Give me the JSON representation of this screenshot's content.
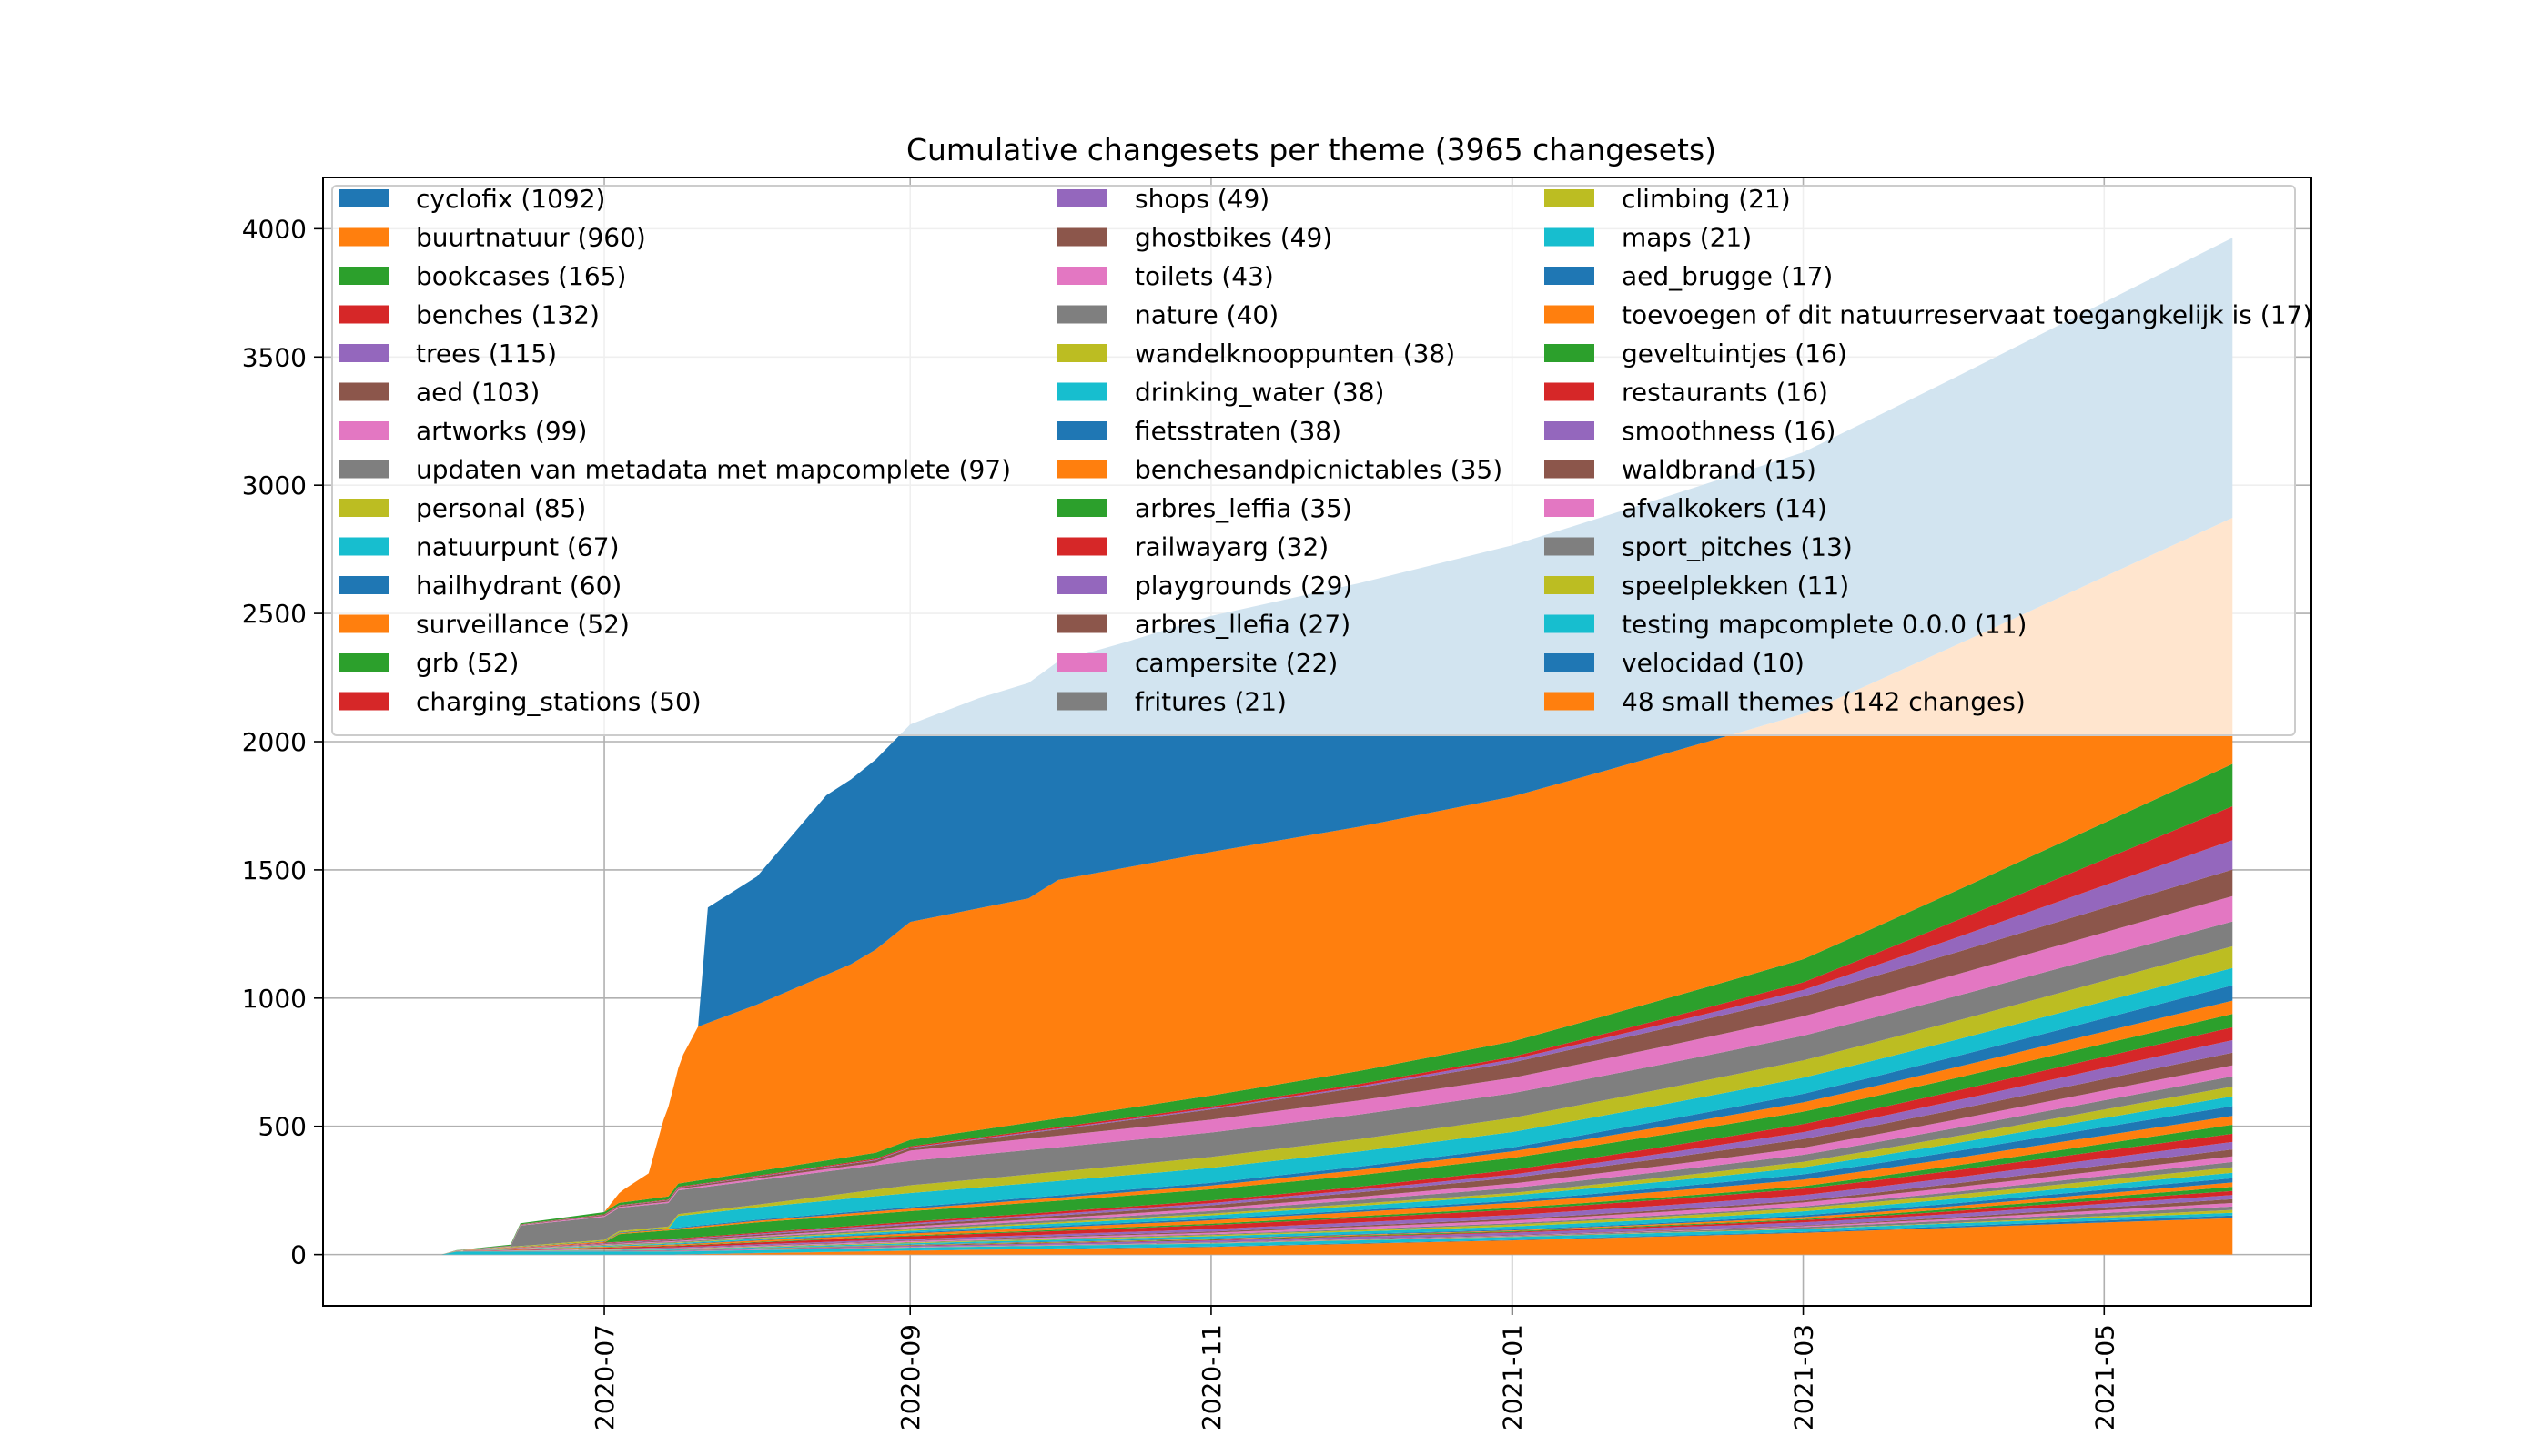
{
  "chart_data": {
    "type": "area",
    "title": "Cumulative changesets per theme (3965 changesets)",
    "xlabel": "",
    "ylabel": "",
    "ylim": [
      -200,
      4200
    ],
    "yticks": [
      0,
      500,
      1000,
      1500,
      2000,
      2500,
      3000,
      3500,
      4000
    ],
    "x_range": [
      "2020-05-05",
      "2021-06-12"
    ],
    "xticks": [
      "2020-07",
      "2020-09",
      "2020-11",
      "2021-01",
      "2021-03",
      "2021-05"
    ],
    "grid": true,
    "legend_position": "top-left, 3 columns",
    "stacked": true,
    "series_order_note": "bottom to top",
    "series": [
      {
        "name": "48 small themes (142 changes)",
        "color": "#ff7f0e",
        "points": [
          [
            "2020-05-29",
            0
          ],
          [
            "2020-07-15",
            0
          ],
          [
            "2020-09-01",
            15
          ],
          [
            "2020-11-01",
            30
          ],
          [
            "2021-01-01",
            55
          ],
          [
            "2021-03-01",
            85
          ],
          [
            "2021-05-01",
            125
          ],
          [
            "2021-05-27",
            142
          ]
        ]
      },
      {
        "name": "velocidad (10)",
        "color": "#1f77b4",
        "points": [
          [
            "2020-05-29",
            0
          ],
          [
            "2021-03-01",
            3
          ],
          [
            "2021-05-27",
            10
          ]
        ]
      },
      {
        "name": "testing mapcomplete 0.0.0 (11)",
        "color": "#17becf",
        "points": [
          [
            "2020-05-29",
            0
          ],
          [
            "2020-06-01",
            11
          ],
          [
            "2021-05-27",
            11
          ]
        ]
      },
      {
        "name": "speelplekken (11)",
        "color": "#bcbd22",
        "points": [
          [
            "2020-05-29",
            0
          ],
          [
            "2021-04-01",
            2
          ],
          [
            "2021-05-27",
            11
          ]
        ]
      },
      {
        "name": "sport_pitches (13)",
        "color": "#7f7f7f",
        "points": [
          [
            "2020-05-29",
            0
          ],
          [
            "2021-01-01",
            2
          ],
          [
            "2021-05-27",
            13
          ]
        ]
      },
      {
        "name": "afvalkokers (14)",
        "color": "#e377c2",
        "points": [
          [
            "2020-05-29",
            0
          ],
          [
            "2021-02-15",
            2
          ],
          [
            "2021-05-27",
            14
          ]
        ]
      },
      {
        "name": "waldbrand (15)",
        "color": "#8c564b",
        "points": [
          [
            "2020-05-29",
            0
          ],
          [
            "2021-03-15",
            3
          ],
          [
            "2021-05-27",
            15
          ]
        ]
      },
      {
        "name": "smoothness (16)",
        "color": "#9467bd",
        "points": [
          [
            "2020-05-29",
            0
          ],
          [
            "2020-09-01",
            4
          ],
          [
            "2021-05-27",
            16
          ]
        ]
      },
      {
        "name": "restaurants (16)",
        "color": "#d62728",
        "points": [
          [
            "2020-05-29",
            0
          ],
          [
            "2021-01-01",
            3
          ],
          [
            "2021-05-27",
            16
          ]
        ]
      },
      {
        "name": "geveltuintjes (16)",
        "color": "#2ca02c",
        "points": [
          [
            "2020-05-29",
            0
          ],
          [
            "2021-03-01",
            4
          ],
          [
            "2021-05-27",
            16
          ]
        ]
      },
      {
        "name": "toevoegen of dit natuurreservaat toegangkelijk is (17)",
        "color": "#ff7f0e",
        "points": [
          [
            "2020-05-29",
            0
          ],
          [
            "2021-01-15",
            3
          ],
          [
            "2021-05-27",
            17
          ]
        ]
      },
      {
        "name": "aed_brugge (17)",
        "color": "#1f77b4",
        "points": [
          [
            "2020-05-29",
            0
          ],
          [
            "2021-02-01",
            4
          ],
          [
            "2021-05-27",
            17
          ]
        ]
      },
      {
        "name": "maps (21)",
        "color": "#17becf",
        "points": [
          [
            "2020-05-29",
            0
          ],
          [
            "2020-10-01",
            6
          ],
          [
            "2021-05-27",
            21
          ]
        ]
      },
      {
        "name": "climbing (21)",
        "color": "#bcbd22",
        "points": [
          [
            "2020-05-29",
            0
          ],
          [
            "2020-12-01",
            5
          ],
          [
            "2021-05-27",
            21
          ]
        ]
      },
      {
        "name": "fritures (21)",
        "color": "#7f7f7f",
        "points": [
          [
            "2020-05-29",
            0
          ],
          [
            "2021-03-01",
            6
          ],
          [
            "2021-05-27",
            21
          ]
        ]
      },
      {
        "name": "campersite (22)",
        "color": "#e377c2",
        "points": [
          [
            "2020-05-29",
            0
          ],
          [
            "2020-11-01",
            6
          ],
          [
            "2021-05-27",
            22
          ]
        ]
      },
      {
        "name": "arbres_llefia (27)",
        "color": "#8c564b",
        "points": [
          [
            "2020-05-29",
            0
          ],
          [
            "2021-03-01",
            8
          ],
          [
            "2021-05-27",
            27
          ]
        ]
      },
      {
        "name": "playgrounds (29)",
        "color": "#9467bd",
        "points": [
          [
            "2020-05-29",
            0
          ],
          [
            "2020-10-15",
            8
          ],
          [
            "2021-05-27",
            29
          ]
        ]
      },
      {
        "name": "railwayarg (32)",
        "color": "#d62728",
        "points": [
          [
            "2020-05-29",
            0
          ],
          [
            "2020-08-25",
            10
          ],
          [
            "2021-01-01",
            20
          ],
          [
            "2021-05-27",
            32
          ]
        ]
      },
      {
        "name": "arbres_leffia (35)",
        "color": "#2ca02c",
        "points": [
          [
            "2020-05-29",
            0
          ],
          [
            "2021-03-01",
            10
          ],
          [
            "2021-05-27",
            35
          ]
        ]
      },
      {
        "name": "benchesandpicnictables (35)",
        "color": "#ff7f0e",
        "points": [
          [
            "2020-05-29",
            0
          ],
          [
            "2020-10-01",
            10
          ],
          [
            "2021-05-27",
            35
          ]
        ]
      },
      {
        "name": "fietsstraten (38)",
        "color": "#1f77b4",
        "points": [
          [
            "2020-05-29",
            0
          ],
          [
            "2021-01-01",
            8
          ],
          [
            "2021-05-27",
            38
          ]
        ]
      },
      {
        "name": "drinking_water (38)",
        "color": "#17becf",
        "points": [
          [
            "2020-05-29",
            0
          ],
          [
            "2020-09-15",
            8
          ],
          [
            "2021-05-27",
            38
          ]
        ]
      },
      {
        "name": "wandelknooppunten (38)",
        "color": "#bcbd22",
        "points": [
          [
            "2020-05-29",
            0
          ],
          [
            "2021-01-01",
            10
          ],
          [
            "2021-05-27",
            38
          ]
        ]
      },
      {
        "name": "nature (40)",
        "color": "#7f7f7f",
        "points": [
          [
            "2020-05-29",
            0
          ],
          [
            "2020-11-01",
            10
          ],
          [
            "2021-05-27",
            40
          ]
        ]
      },
      {
        "name": "toilets (43)",
        "color": "#e377c2",
        "points": [
          [
            "2020-05-29",
            0
          ],
          [
            "2020-12-01",
            12
          ],
          [
            "2021-05-27",
            43
          ]
        ]
      },
      {
        "name": "ghostbikes (49)",
        "color": "#8c564b",
        "points": [
          [
            "2020-05-29",
            0
          ],
          [
            "2020-11-01",
            12
          ],
          [
            "2021-05-27",
            49
          ]
        ]
      },
      {
        "name": "shops (49)",
        "color": "#9467bd",
        "points": [
          [
            "2020-05-29",
            0
          ],
          [
            "2021-01-01",
            12
          ],
          [
            "2021-05-27",
            49
          ]
        ]
      },
      {
        "name": "charging_stations (50)",
        "color": "#d62728",
        "points": [
          [
            "2020-05-29",
            0
          ],
          [
            "2020-12-01",
            12
          ],
          [
            "2021-05-27",
            50
          ]
        ]
      },
      {
        "name": "grb (52)",
        "color": "#2ca02c",
        "points": [
          [
            "2020-05-29",
            0
          ],
          [
            "2020-07-01",
            0
          ],
          [
            "2020-07-04",
            30
          ],
          [
            "2020-08-01",
            40
          ],
          [
            "2021-05-27",
            52
          ]
        ]
      },
      {
        "name": "surveillance (52)",
        "color": "#ff7f0e",
        "points": [
          [
            "2020-05-29",
            0
          ],
          [
            "2020-11-01",
            15
          ],
          [
            "2021-05-27",
            52
          ]
        ]
      },
      {
        "name": "hailhydrant (60)",
        "color": "#1f77b4",
        "points": [
          [
            "2020-05-29",
            0
          ],
          [
            "2021-01-01",
            15
          ],
          [
            "2021-05-27",
            60
          ]
        ]
      },
      {
        "name": "natuurpunt (67)",
        "color": "#17becf",
        "points": [
          [
            "2020-05-29",
            0
          ],
          [
            "2020-07-14",
            0
          ],
          [
            "2020-07-16",
            45
          ],
          [
            "2020-09-01",
            55
          ],
          [
            "2021-05-27",
            67
          ]
        ]
      },
      {
        "name": "personal (85)",
        "color": "#bcbd22",
        "points": [
          [
            "2020-05-29",
            0
          ],
          [
            "2020-08-01",
            10
          ],
          [
            "2020-09-01",
            30
          ],
          [
            "2021-01-01",
            55
          ],
          [
            "2021-05-27",
            85
          ]
        ]
      },
      {
        "name": "updaten van metadata met mapcomplete (97)",
        "color": "#7f7f7f",
        "points": [
          [
            "2020-05-29",
            0
          ],
          [
            "2020-06-12",
            0
          ],
          [
            "2020-06-14",
            80
          ],
          [
            "2020-07-01",
            90
          ],
          [
            "2020-08-01",
            95
          ],
          [
            "2021-05-27",
            97
          ]
        ]
      },
      {
        "name": "artworks (99)",
        "color": "#e377c2",
        "points": [
          [
            "2020-05-29",
            0
          ],
          [
            "2020-08-25",
            10
          ],
          [
            "2020-09-01",
            40
          ],
          [
            "2021-01-01",
            60
          ],
          [
            "2021-05-27",
            99
          ]
        ]
      },
      {
        "name": "aed (103)",
        "color": "#8c564b",
        "points": [
          [
            "2020-05-29",
            0
          ],
          [
            "2020-09-01",
            10
          ],
          [
            "2020-11-01",
            40
          ],
          [
            "2021-01-01",
            60
          ],
          [
            "2021-05-27",
            103
          ]
        ]
      },
      {
        "name": "trees (115)",
        "color": "#9467bd",
        "points": [
          [
            "2020-05-29",
            0
          ],
          [
            "2020-12-01",
            5
          ],
          [
            "2021-03-01",
            25
          ],
          [
            "2021-05-27",
            115
          ]
        ]
      },
      {
        "name": "benches (132)",
        "color": "#d62728",
        "points": [
          [
            "2020-05-29",
            0
          ],
          [
            "2021-01-01",
            10
          ],
          [
            "2021-03-01",
            30
          ],
          [
            "2021-05-27",
            132
          ]
        ]
      },
      {
        "name": "bookcases (165)",
        "color": "#2ca02c",
        "points": [
          [
            "2020-05-29",
            0
          ],
          [
            "2020-09-01",
            25
          ],
          [
            "2021-01-01",
            60
          ],
          [
            "2021-03-01",
            90
          ],
          [
            "2021-05-27",
            165
          ]
        ]
      },
      {
        "name": "buurtnatuur (960)",
        "color": "#ff7f0e",
        "points": [
          [
            "2020-05-29",
            0
          ],
          [
            "2020-07-01",
            0
          ],
          [
            "2020-07-05",
            50
          ],
          [
            "2020-07-10",
            100
          ],
          [
            "2020-07-13",
            300
          ],
          [
            "2020-07-15",
            400
          ],
          [
            "2020-07-17",
            500
          ],
          [
            "2020-07-20",
            600
          ],
          [
            "2020-08-01",
            650
          ],
          [
            "2020-08-20",
            750
          ],
          [
            "2020-09-01",
            850
          ],
          [
            "2020-09-25",
            875
          ],
          [
            "2020-10-01",
            930
          ],
          [
            "2020-11-01",
            950
          ],
          [
            "2021-01-01",
            955
          ],
          [
            "2021-05-27",
            960
          ]
        ]
      },
      {
        "name": "cyclofix (1092)",
        "color": "#1f77b4",
        "points": [
          [
            "2020-05-29",
            0
          ],
          [
            "2020-07-20",
            0
          ],
          [
            "2020-07-22",
            450
          ],
          [
            "2020-08-01",
            500
          ],
          [
            "2020-08-15",
            700
          ],
          [
            "2020-09-01",
            770
          ],
          [
            "2020-09-15",
            820
          ],
          [
            "2020-10-15",
            880
          ],
          [
            "2020-11-01",
            920
          ],
          [
            "2021-01-01",
            980
          ],
          [
            "2021-03-01",
            1020
          ],
          [
            "2021-05-27",
            1092
          ]
        ]
      }
    ]
  }
}
